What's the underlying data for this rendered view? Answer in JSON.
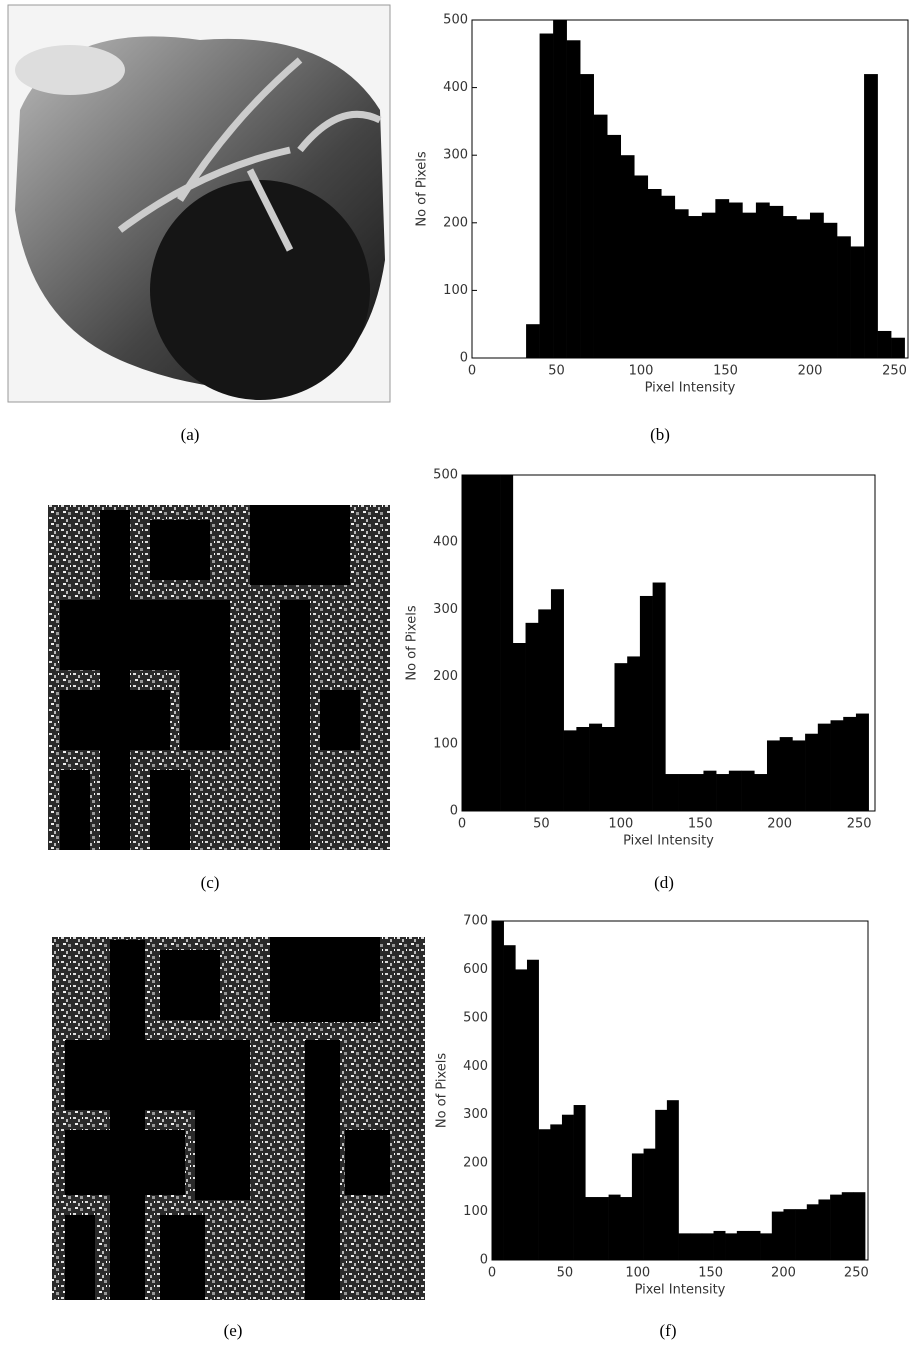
{
  "chart_data": [
    {
      "type": "histogram",
      "x_label": "Pixel Intensity",
      "y_label": "No of Pixels",
      "color": "#000000",
      "bins": [
        0,
        8,
        16,
        24,
        32,
        40,
        48,
        56,
        64,
        72,
        80,
        88,
        96,
        104,
        112,
        120,
        128,
        136,
        144,
        152,
        160,
        168,
        176,
        184,
        192,
        200,
        208,
        216,
        224,
        232,
        240,
        248,
        256
      ],
      "values": [
        0,
        0,
        0,
        0,
        50,
        480,
        500,
        470,
        420,
        360,
        330,
        300,
        270,
        250,
        240,
        220,
        210,
        215,
        235,
        230,
        215,
        230,
        225,
        210,
        205,
        215,
        200,
        180,
        165,
        420,
        40,
        30
      ],
      "xlim": [
        0,
        258
      ],
      "xticks": [
        0,
        50,
        100,
        150,
        200,
        250
      ],
      "ylim": [
        0,
        500
      ],
      "yticks": [
        0,
        100,
        200,
        300,
        400,
        500
      ]
    },
    {
      "type": "histogram",
      "x_label": "Pixel Intensity",
      "y_label": "No of Pixels",
      "color": "#000000",
      "bins": [
        0,
        8,
        16,
        24,
        32,
        40,
        48,
        56,
        64,
        72,
        80,
        88,
        96,
        104,
        112,
        120,
        128,
        136,
        144,
        152,
        160,
        168,
        176,
        184,
        192,
        200,
        208,
        216,
        224,
        232,
        240,
        248,
        256
      ],
      "values": [
        500,
        500,
        500,
        500,
        250,
        280,
        300,
        330,
        120,
        125,
        130,
        125,
        220,
        230,
        320,
        340,
        55,
        55,
        55,
        60,
        55,
        60,
        60,
        55,
        105,
        110,
        105,
        115,
        130,
        135,
        140,
        145
      ],
      "xlim": [
        0,
        260
      ],
      "xticks": [
        0,
        50,
        100,
        150,
        200,
        250
      ],
      "ylim": [
        0,
        500
      ],
      "yticks": [
        0,
        100,
        200,
        300,
        400,
        500
      ]
    },
    {
      "type": "histogram",
      "x_label": "Pixel Intensity",
      "y_label": "No of Pixels",
      "color": "#000000",
      "bins": [
        0,
        8,
        16,
        24,
        32,
        40,
        48,
        56,
        64,
        72,
        80,
        88,
        96,
        104,
        112,
        120,
        128,
        136,
        144,
        152,
        160,
        168,
        176,
        184,
        192,
        200,
        208,
        216,
        224,
        232,
        240,
        248,
        256
      ],
      "values": [
        700,
        650,
        600,
        620,
        270,
        280,
        300,
        320,
        130,
        130,
        135,
        130,
        220,
        230,
        310,
        330,
        55,
        55,
        55,
        60,
        55,
        60,
        60,
        55,
        100,
        105,
        105,
        115,
        125,
        135,
        140,
        140
      ],
      "xlim": [
        0,
        258
      ],
      "xticks": [
        0,
        50,
        100,
        150,
        200,
        250
      ],
      "ylim": [
        0,
        700
      ],
      "yticks": [
        0,
        100,
        200,
        300,
        400,
        500,
        600,
        700
      ]
    }
  ],
  "captions": [
    "(a)",
    "(b)",
    "(c)",
    "(d)",
    "(e)",
    "(f)"
  ]
}
